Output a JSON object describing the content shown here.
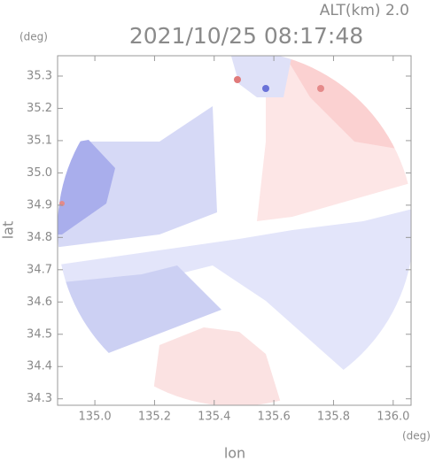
{
  "chart_data": {
    "type": "radar",
    "title": "2021/10/25 08:17:48",
    "subtitle": "ALT(km) 2.0",
    "x_unit": "(deg)",
    "y_unit": "(deg)",
    "xlabel": "lon",
    "ylabel": "lat",
    "xlim": [
      134.875,
      136.06
    ],
    "ylim": [
      34.28,
      35.363
    ],
    "xticks": [
      {
        "value": 135,
        "label": "135.0"
      },
      135.2,
      135.4,
      135.6,
      135.8,
      {
        "value": 136,
        "label": "136.0"
      }
    ],
    "yticks": [
      34.3,
      34.4,
      34.5,
      34.6,
      34.7,
      34.8,
      34.9,
      {
        "value": 35,
        "label": "35.0"
      },
      35.1,
      35.2,
      35.3
    ],
    "frame_color": "#999999",
    "text_color": "#8a8a8a"
  }
}
